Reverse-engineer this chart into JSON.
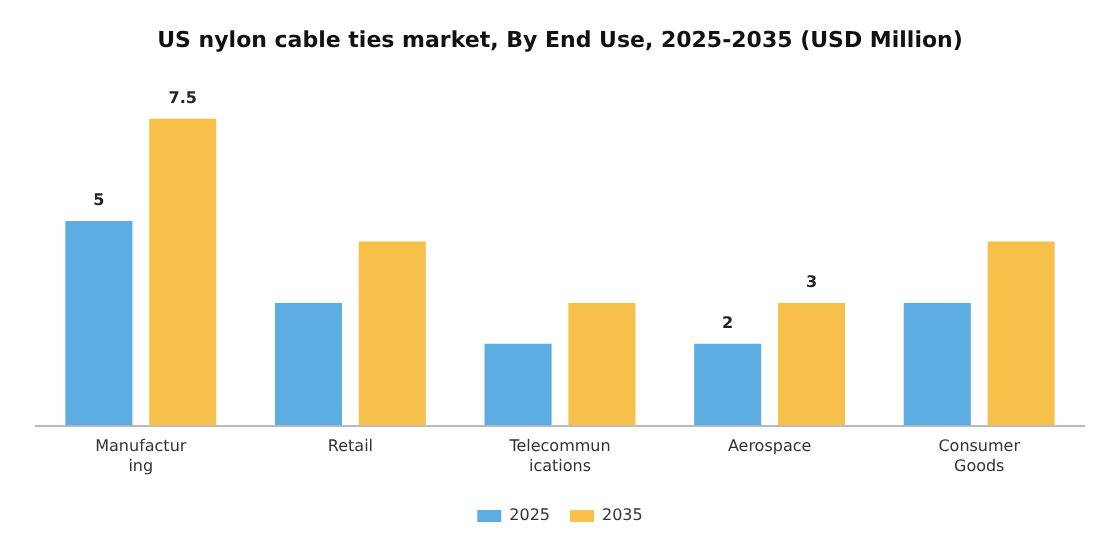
{
  "chart_data": {
    "type": "bar",
    "title": "US nylon cable ties market, By End Use, 2025-2035 (USD Million)",
    "categories": [
      "Manufacturing",
      "Retail",
      "Telecommunications",
      "Aerospace",
      "Consumer Goods"
    ],
    "series": [
      {
        "name": "2025",
        "color": "#5dade2",
        "values": [
          5,
          3,
          2,
          2,
          3
        ],
        "value_labels": [
          "5",
          null,
          null,
          "2",
          null
        ]
      },
      {
        "name": "2035",
        "color": "#f7c04a",
        "values": [
          7.5,
          4.5,
          3,
          3,
          4.5
        ],
        "value_labels": [
          "7.5",
          null,
          null,
          "3",
          null
        ]
      }
    ],
    "legend": "bottom",
    "grid": false
  }
}
